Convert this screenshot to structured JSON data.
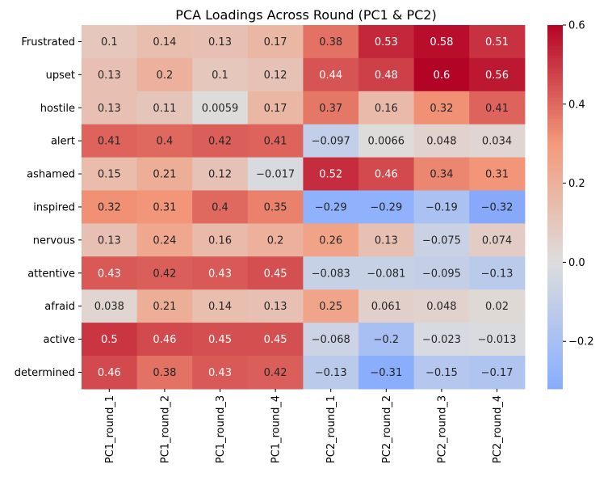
{
  "chart_data": {
    "type": "heatmap",
    "title": "PCA Loadings Across Round (PC1 & PC2)",
    "xlabel": "",
    "ylabel": "",
    "columns": [
      "PC1_round_1",
      "PC1_round_2",
      "PC1_round_3",
      "PC1_round_4",
      "PC2_round_1",
      "PC2_round_2",
      "PC2_round_3",
      "PC2_round_4"
    ],
    "rows": [
      "Frustrated",
      "upset",
      "hostile",
      "alert",
      "ashamed",
      "inspired",
      "nervous",
      "attentive",
      "afraid",
      "active",
      "determined"
    ],
    "values": [
      [
        0.1,
        0.14,
        0.13,
        0.17,
        0.38,
        0.53,
        0.58,
        0.51
      ],
      [
        0.13,
        0.2,
        0.1,
        0.12,
        0.44,
        0.48,
        0.6,
        0.56
      ],
      [
        0.13,
        0.11,
        0.0059,
        0.17,
        0.37,
        0.16,
        0.32,
        0.41
      ],
      [
        0.41,
        0.4,
        0.42,
        0.41,
        -0.097,
        0.0066,
        0.048,
        0.034
      ],
      [
        0.15,
        0.21,
        0.12,
        -0.017,
        0.52,
        0.46,
        0.34,
        0.31
      ],
      [
        0.32,
        0.31,
        0.4,
        0.35,
        -0.29,
        -0.29,
        -0.19,
        -0.32
      ],
      [
        0.13,
        0.24,
        0.16,
        0.2,
        0.26,
        0.13,
        -0.075,
        0.074
      ],
      [
        0.43,
        0.42,
        0.43,
        0.45,
        -0.083,
        -0.081,
        -0.095,
        -0.13
      ],
      [
        0.038,
        0.21,
        0.14,
        0.13,
        0.25,
        0.061,
        0.048,
        0.02
      ],
      [
        0.5,
        0.46,
        0.45,
        0.45,
        -0.068,
        -0.2,
        -0.023,
        -0.013
      ],
      [
        0.46,
        0.38,
        0.43,
        0.42,
        -0.13,
        -0.31,
        -0.15,
        -0.17
      ]
    ],
    "colormap": "coolwarm",
    "center": 0,
    "vmin": -0.32,
    "vmax": 0.6,
    "colorbar_ticks": [
      -0.2,
      0.0,
      0.2,
      0.4,
      0.6
    ],
    "colorbar_tick_labels": [
      "−0.2",
      "0.0",
      "0.2",
      "0.4",
      "0.6"
    ],
    "annotations": true,
    "grid": false,
    "colorbar": "right"
  }
}
